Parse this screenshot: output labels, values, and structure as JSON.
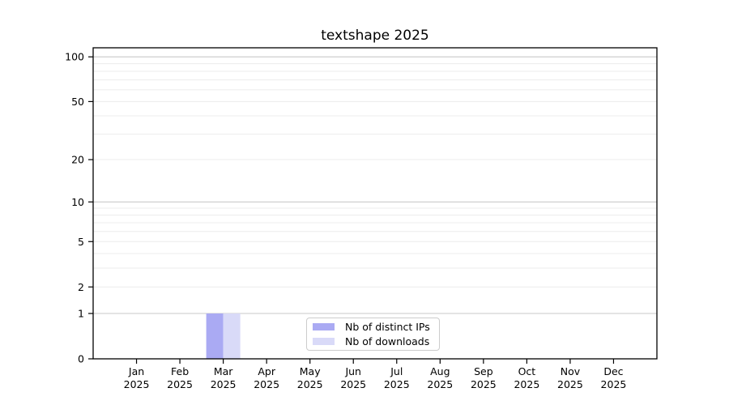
{
  "window": {
    "title": "textshape 2025"
  },
  "chart_data": {
    "type": "bar",
    "title": "textshape 2025",
    "x_categories": [
      "Jan",
      "Feb",
      "Mar",
      "Apr",
      "May",
      "Jun",
      "Jul",
      "Aug",
      "Sep",
      "Oct",
      "Nov",
      "Dec"
    ],
    "x_sublabel": "2025",
    "series": [
      {
        "name": "Nb of distinct IPs",
        "color": "#aaaaf3",
        "values": [
          0,
          0,
          1,
          0,
          0,
          0,
          0,
          0,
          0,
          0,
          0,
          0
        ]
      },
      {
        "name": "Nb of downloads",
        "color": "#d9daf8",
        "values": [
          0,
          0,
          1,
          0,
          0,
          0,
          0,
          0,
          0,
          0,
          0,
          0
        ]
      }
    ],
    "y_scale": "log1p",
    "ylim": [
      0,
      115
    ],
    "y_ticks": [
      0,
      1,
      2,
      5,
      10,
      20,
      50,
      100
    ],
    "y_major_gridlines": [
      1,
      10,
      100
    ],
    "y_minor_gridlines": [
      2,
      3,
      4,
      5,
      6,
      7,
      8,
      9,
      20,
      30,
      40,
      50,
      60,
      70,
      80,
      90
    ],
    "grid": true,
    "legend_position": "lower center"
  },
  "legend": {
    "items": [
      {
        "label": "Nb of distinct IPs",
        "color": "#aaaaf3"
      },
      {
        "label": "Nb of downloads",
        "color": "#d9daf8"
      }
    ]
  },
  "colors": {
    "background": "#ffffff",
    "axis": "#000000",
    "text": "#000000",
    "grid_major": "#c9c9c9",
    "grid_minor": "#ececec",
    "legend_border": "#cccccc"
  }
}
